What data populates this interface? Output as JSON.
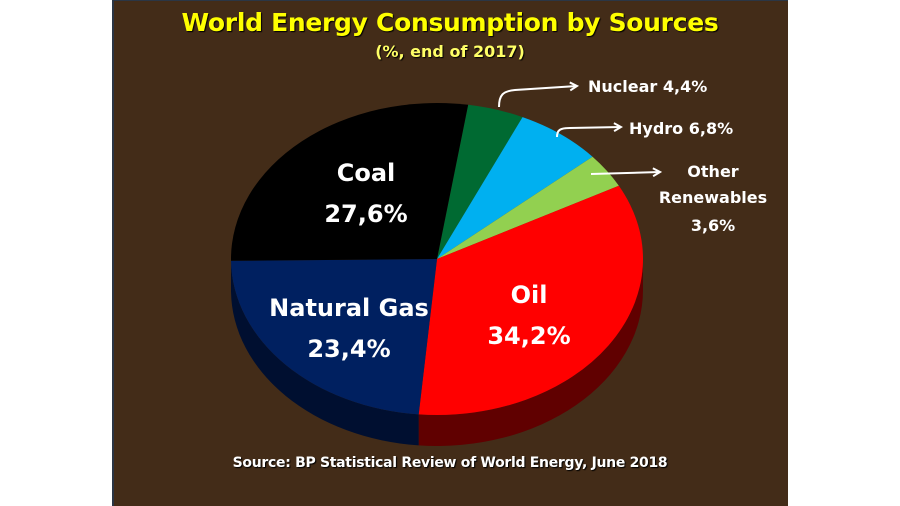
{
  "slide": {
    "title": "World Energy Consumption by Sources",
    "subtitle": "(%, end of 2017)",
    "source": "Source: BP Statistical Review of World Energy, June 2018",
    "background_color": "#432c18",
    "title_color": "#ffff00"
  },
  "labels": {
    "coal_name": "Coal",
    "coal_value": "27,6%",
    "gas_name": "Natural Gas",
    "gas_value": "23,4%",
    "oil_name": "Oil",
    "oil_value": "34,2%",
    "nuclear": "Nuclear 4,4%",
    "hydro": "Hydro 6,8%",
    "other_line1": "Other",
    "other_line2": "Renewables",
    "other_value": "3,6%"
  },
  "chart_data": {
    "type": "pie",
    "title": "World Energy Consumption by Sources",
    "subtitle": "(%, end of 2017)",
    "style": "3d",
    "unit": "%",
    "categories": [
      "Nuclear",
      "Hydro",
      "Other Renewables",
      "Oil",
      "Natural Gas",
      "Coal"
    ],
    "values": [
      4.4,
      6.8,
      3.6,
      34.2,
      23.4,
      27.6
    ],
    "colors": [
      "#006a32",
      "#00b0f0",
      "#92d050",
      "#ff0000",
      "#002060",
      "#000000"
    ],
    "side_colors": [
      "#003a1b",
      "#006a90",
      "#557a2e",
      "#600000",
      "#000f30",
      "#000000"
    ],
    "source": "Source: BP Statistical Review of World Energy, June 2018",
    "legend": "none (direct labels; Nuclear, Hydro, Other Renewables labelled with arrows)"
  }
}
